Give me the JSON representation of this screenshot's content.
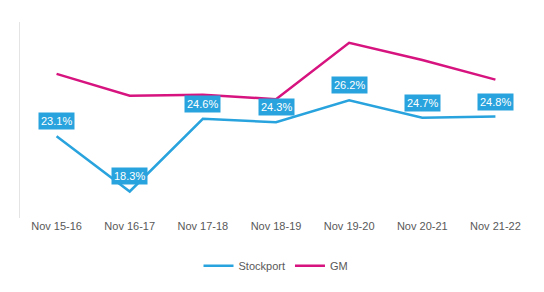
{
  "chart_data": {
    "type": "line",
    "categories": [
      "Nov 15-16",
      "Nov 16-17",
      "Nov 17-18",
      "Nov 18-19",
      "Nov 19-20",
      "Nov 20-21",
      "Nov 21-22"
    ],
    "series": [
      {
        "name": "Stockport",
        "color": "#29a3dd",
        "values": [
          23.1,
          18.3,
          24.6,
          24.3,
          26.2,
          24.7,
          24.8
        ],
        "value_labels": [
          "23.1%",
          "18.3%",
          "24.6%",
          "24.3%",
          "26.2%",
          "24.7%",
          "24.8%"
        ],
        "data_labels": true
      },
      {
        "name": "GM",
        "color": "#d6137f",
        "values": [
          28.5,
          26.6,
          26.7,
          26.3,
          31.2,
          29.7,
          28.0
        ]
      }
    ],
    "ylim": [
      16,
      33
    ],
    "tick_labels": "x",
    "grid": false,
    "legend": "bottom"
  }
}
